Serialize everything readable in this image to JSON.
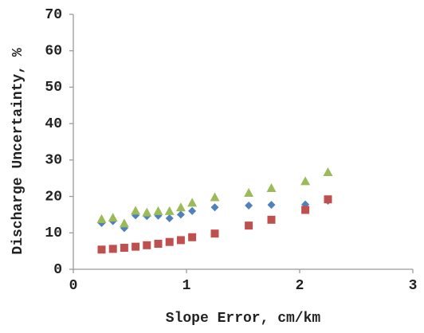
{
  "chart_data": {
    "type": "scatter",
    "x_label": "Slope Error, cm/km",
    "y_label": "Discharge Uncertainty, %",
    "xlim": [
      0,
      3
    ],
    "xticks": [
      0,
      1,
      2,
      3
    ],
    "ylim": [
      0,
      70
    ],
    "yticks": [
      0,
      10,
      20,
      30,
      40,
      50,
      60,
      70
    ],
    "grid": false,
    "x": [
      0.25,
      0.35,
      0.45,
      0.55,
      0.65,
      0.75,
      0.85,
      0.95,
      1.05,
      1.25,
      1.55,
      1.75,
      2.05,
      2.25
    ],
    "series": [
      {
        "color": "#4f81bd",
        "marker": "diamond",
        "values": [
          12.7,
          13.2,
          11.3,
          14.8,
          14.6,
          14.7,
          14,
          15,
          16,
          17,
          17.5,
          17.7,
          17.8,
          18.8
        ]
      },
      {
        "color": "#c0504d",
        "marker": "square",
        "values": [
          5.4,
          5.6,
          5.9,
          6.2,
          6.6,
          7,
          7.5,
          8,
          8.8,
          9.8,
          12,
          13.6,
          16.3,
          19.2
        ]
      },
      {
        "color": "#9bbb59",
        "marker": "triangle",
        "values": [
          13.8,
          14.2,
          12.6,
          16.1,
          15.6,
          16,
          16,
          17,
          18.3,
          19.8,
          21,
          22.3,
          24.2,
          26.7
        ]
      }
    ]
  }
}
